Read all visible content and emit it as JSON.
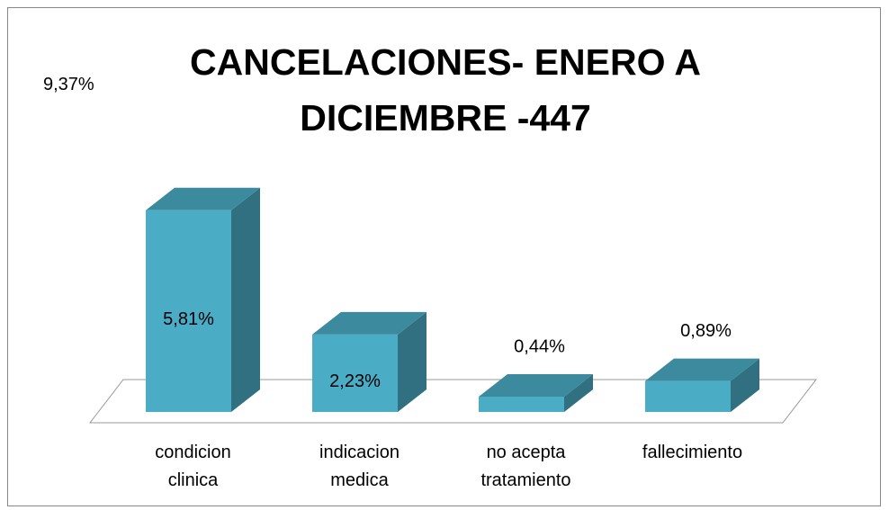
{
  "chart_data": {
    "type": "bar3d",
    "title": "CANCELACIONES- ENERO A DICIEMBRE -447",
    "annotation": "9,37%",
    "categories": [
      "condicion clinica",
      "indicacion medica",
      "no acepta tratamiento",
      "fallecimiento"
    ],
    "values": [
      5.81,
      2.23,
      0.44,
      0.89
    ],
    "value_labels": [
      "5,81%",
      "2,23%",
      "0,44%",
      "0,89%"
    ],
    "color": "#4bacc6"
  }
}
